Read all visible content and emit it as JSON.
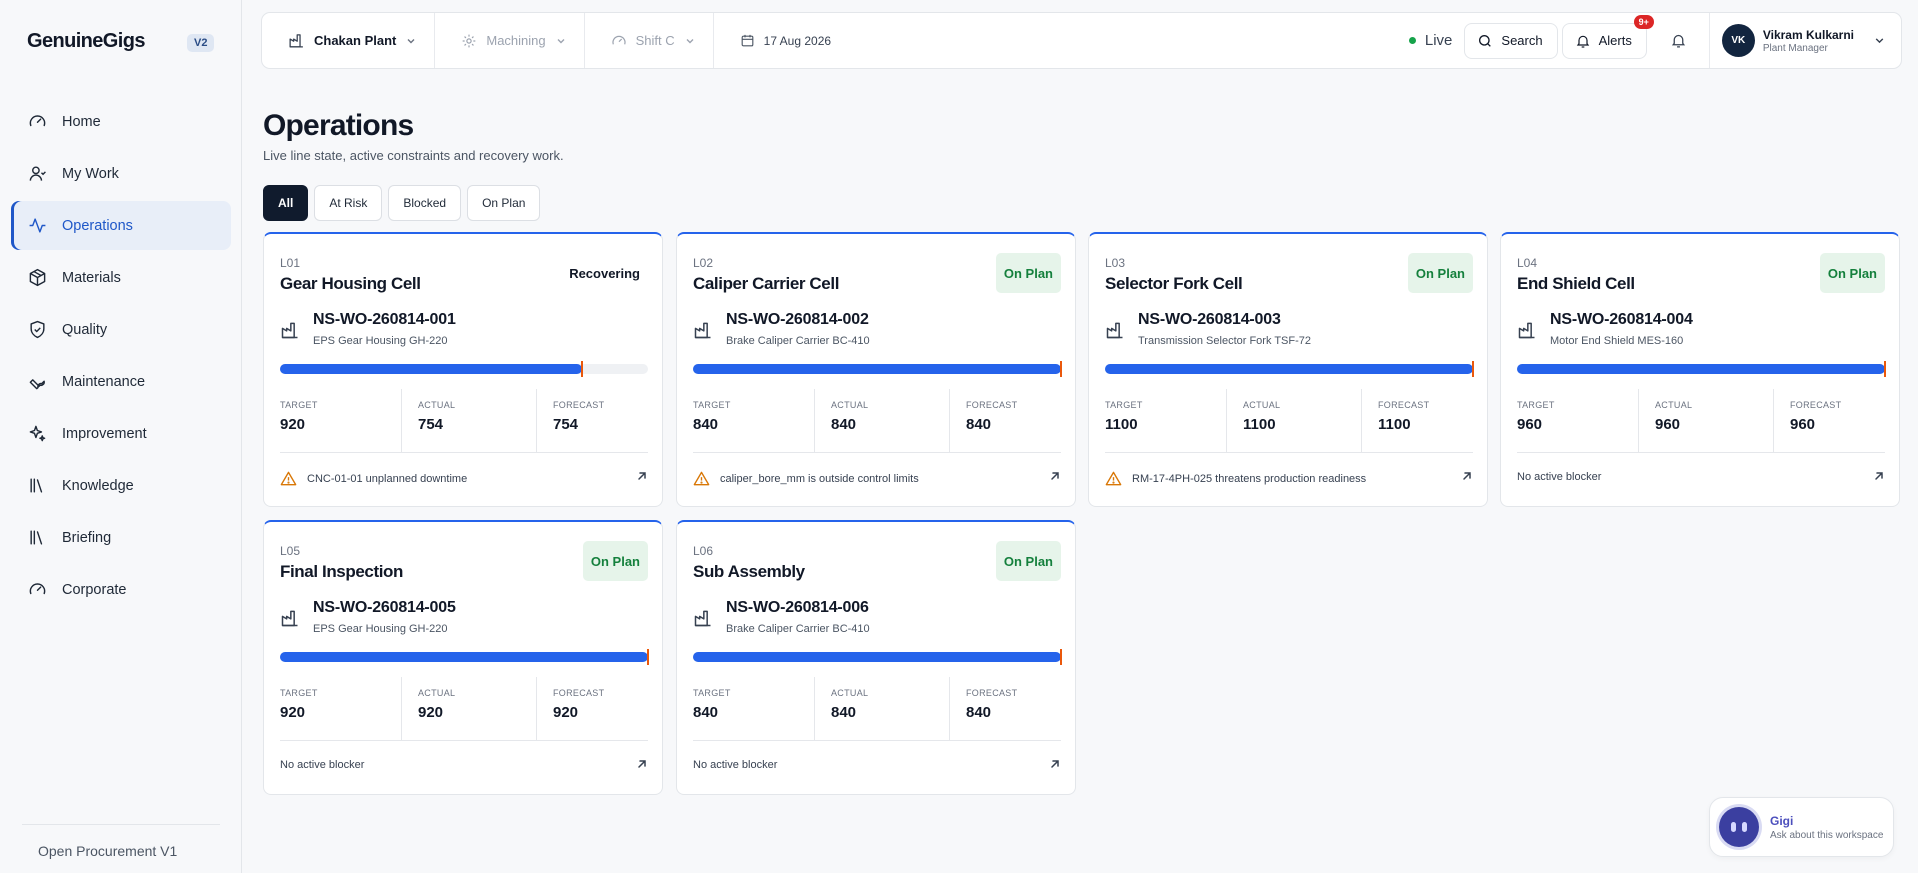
{
  "brand": {
    "name": "GenuineGigs",
    "version": "V2"
  },
  "nav": [
    {
      "label": "Home",
      "icon": "gauge-icon",
      "active": false
    },
    {
      "label": "My Work",
      "icon": "user-icon",
      "active": false
    },
    {
      "label": "Operations",
      "icon": "activity-icon",
      "active": true
    },
    {
      "label": "Materials",
      "icon": "package-icon",
      "active": false
    },
    {
      "label": "Quality",
      "icon": "shield-check-icon",
      "active": false
    },
    {
      "label": "Maintenance",
      "icon": "wrench-icon",
      "active": false
    },
    {
      "label": "Improvement",
      "icon": "sparkles-icon",
      "active": false
    },
    {
      "label": "Knowledge",
      "icon": "library-icon",
      "active": false
    },
    {
      "label": "Briefing",
      "icon": "library-icon",
      "active": false
    },
    {
      "label": "Corporate",
      "icon": "gauge-icon",
      "active": false
    }
  ],
  "sidebar_footer": "Open Procurement V1",
  "topbar": {
    "plant": "Chakan Plant",
    "area": "Machining",
    "shift": "Shift C",
    "date": "17 Aug 2026",
    "live_label": "Live",
    "search_label": "Search",
    "alerts_label": "Alerts",
    "alerts_count": "9+",
    "user": {
      "initials": "VK",
      "name": "Vikram Kulkarni",
      "role": "Plant Manager"
    }
  },
  "page": {
    "title": "Operations",
    "subtitle": "Live line state, active constraints and recovery work."
  },
  "filters": [
    {
      "label": "All",
      "active": true
    },
    {
      "label": "At Risk",
      "active": false
    },
    {
      "label": "Blocked",
      "active": false
    },
    {
      "label": "On Plan",
      "active": false
    }
  ],
  "metric_labels": {
    "target": "TARGET",
    "actual": "ACTUAL",
    "forecast": "FORECAST"
  },
  "lines": [
    {
      "code": "L01",
      "name": "Gear Housing Cell",
      "status": "Recovering",
      "status_kind": "recovering",
      "work_order": "NS-WO-260814-001",
      "product": "EPS Gear Housing GH-220",
      "progress": 0.82,
      "target": "920",
      "actual": "754",
      "forecast": "754",
      "blocker": "CNC-01-01 unplanned downtime",
      "has_warning": true
    },
    {
      "code": "L02",
      "name": "Caliper Carrier Cell",
      "status": "On Plan",
      "status_kind": "onplan",
      "work_order": "NS-WO-260814-002",
      "product": "Brake Caliper Carrier BC-410",
      "progress": 1.0,
      "target": "840",
      "actual": "840",
      "forecast": "840",
      "blocker": "caliper_bore_mm is outside control limits",
      "has_warning": true
    },
    {
      "code": "L03",
      "name": "Selector Fork Cell",
      "status": "On Plan",
      "status_kind": "onplan",
      "work_order": "NS-WO-260814-003",
      "product": "Transmission Selector Fork TSF-72",
      "progress": 1.0,
      "target": "1100",
      "actual": "1100",
      "forecast": "1100",
      "blocker": "RM-17-4PH-025 threatens production readiness",
      "has_warning": true
    },
    {
      "code": "L04",
      "name": "End Shield Cell",
      "status": "On Plan",
      "status_kind": "onplan",
      "work_order": "NS-WO-260814-004",
      "product": "Motor End Shield MES-160",
      "progress": 1.0,
      "target": "960",
      "actual": "960",
      "forecast": "960",
      "blocker": "No active blocker",
      "has_warning": false
    },
    {
      "code": "L05",
      "name": "Final Inspection",
      "status": "On Plan",
      "status_kind": "onplan",
      "work_order": "NS-WO-260814-005",
      "product": "EPS Gear Housing GH-220",
      "progress": 1.0,
      "target": "920",
      "actual": "920",
      "forecast": "920",
      "blocker": "No active blocker",
      "has_warning": false
    },
    {
      "code": "L06",
      "name": "Sub Assembly",
      "status": "On Plan",
      "status_kind": "onplan",
      "work_order": "NS-WO-260814-006",
      "product": "Brake Caliper Carrier BC-410",
      "progress": 1.0,
      "target": "840",
      "actual": "840",
      "forecast": "840",
      "blocker": "No active blocker",
      "has_warning": false
    }
  ],
  "assistant": {
    "name": "Gigi",
    "subtitle": "Ask about this workspace"
  },
  "colors": {
    "accent": "#2563eb",
    "on_plan_bg": "#e6f4ea",
    "on_plan_text": "#15803d",
    "warning": "#d97706",
    "alert": "#dc2626",
    "live": "#16a34a"
  }
}
